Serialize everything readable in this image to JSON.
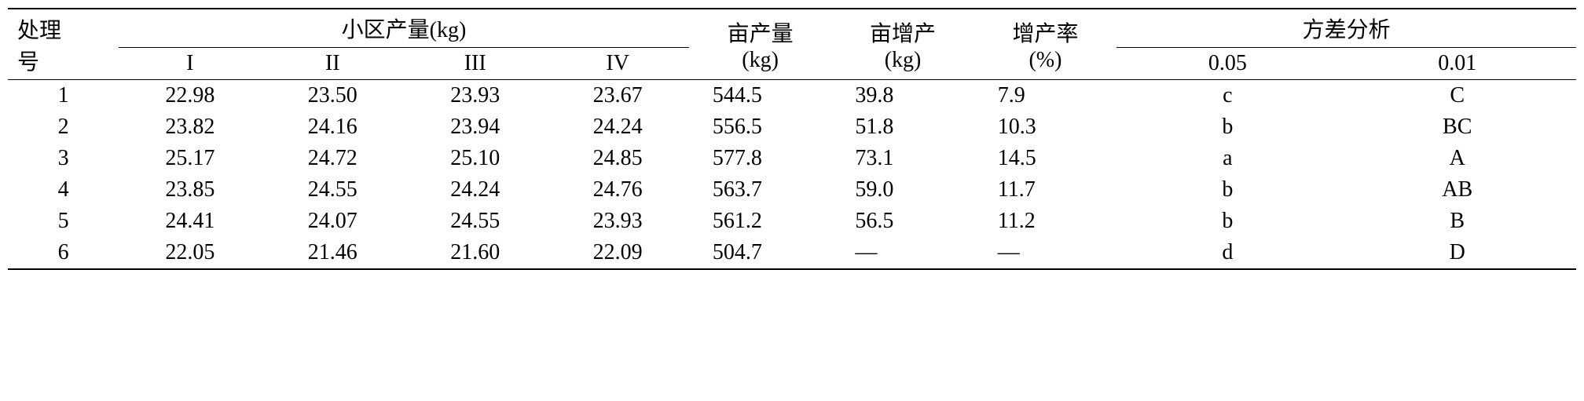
{
  "table": {
    "headers": {
      "treatment_no_line1": "处理",
      "treatment_no_line2": "号",
      "plot_yield": "小区产量(kg)",
      "col_I": "I",
      "col_II": "II",
      "col_III": "III",
      "col_IV": "IV",
      "mu_yield_line1": "亩产量",
      "mu_yield_line2": "(kg)",
      "mu_increase_line1": "亩增产",
      "mu_increase_line2": "(kg)",
      "increase_rate_line1": "增产率",
      "increase_rate_line2": "(%)",
      "variance_analysis": "方差分析",
      "sig_005": "0.05",
      "sig_001": "0.01"
    },
    "rows": [
      {
        "no": "1",
        "I": "22.98",
        "II": "23.50",
        "III": "23.93",
        "IV": "23.67",
        "mu_yield": "544.5",
        "mu_increase": "39.8",
        "rate": "7.9",
        "sig05": "c",
        "sig01": "C"
      },
      {
        "no": "2",
        "I": "23.82",
        "II": "24.16",
        "III": "23.94",
        "IV": "24.24",
        "mu_yield": "556.5",
        "mu_increase": "51.8",
        "rate": "10.3",
        "sig05": "b",
        "sig01": "BC"
      },
      {
        "no": "3",
        "I": "25.17",
        "II": "24.72",
        "III": "25.10",
        "IV": "24.85",
        "mu_yield": "577.8",
        "mu_increase": "73.1",
        "rate": "14.5",
        "sig05": "a",
        "sig01": "A"
      },
      {
        "no": "4",
        "I": "23.85",
        "II": "24.55",
        "III": "24.24",
        "IV": "24.76",
        "mu_yield": "563.7",
        "mu_increase": "59.0",
        "rate": "11.7",
        "sig05": "b",
        "sig01": "AB"
      },
      {
        "no": "5",
        "I": "24.41",
        "II": "24.07",
        "III": "24.55",
        "IV": "23.93",
        "mu_yield": "561.2",
        "mu_increase": "56.5",
        "rate": "11.2",
        "sig05": "b",
        "sig01": "B"
      },
      {
        "no": "6",
        "I": "22.05",
        "II": "21.46",
        "III": "21.60",
        "IV": "22.09",
        "mu_yield": "504.7",
        "mu_increase": "—",
        "rate": "—",
        "sig05": "d",
        "sig01": "D"
      }
    ]
  }
}
